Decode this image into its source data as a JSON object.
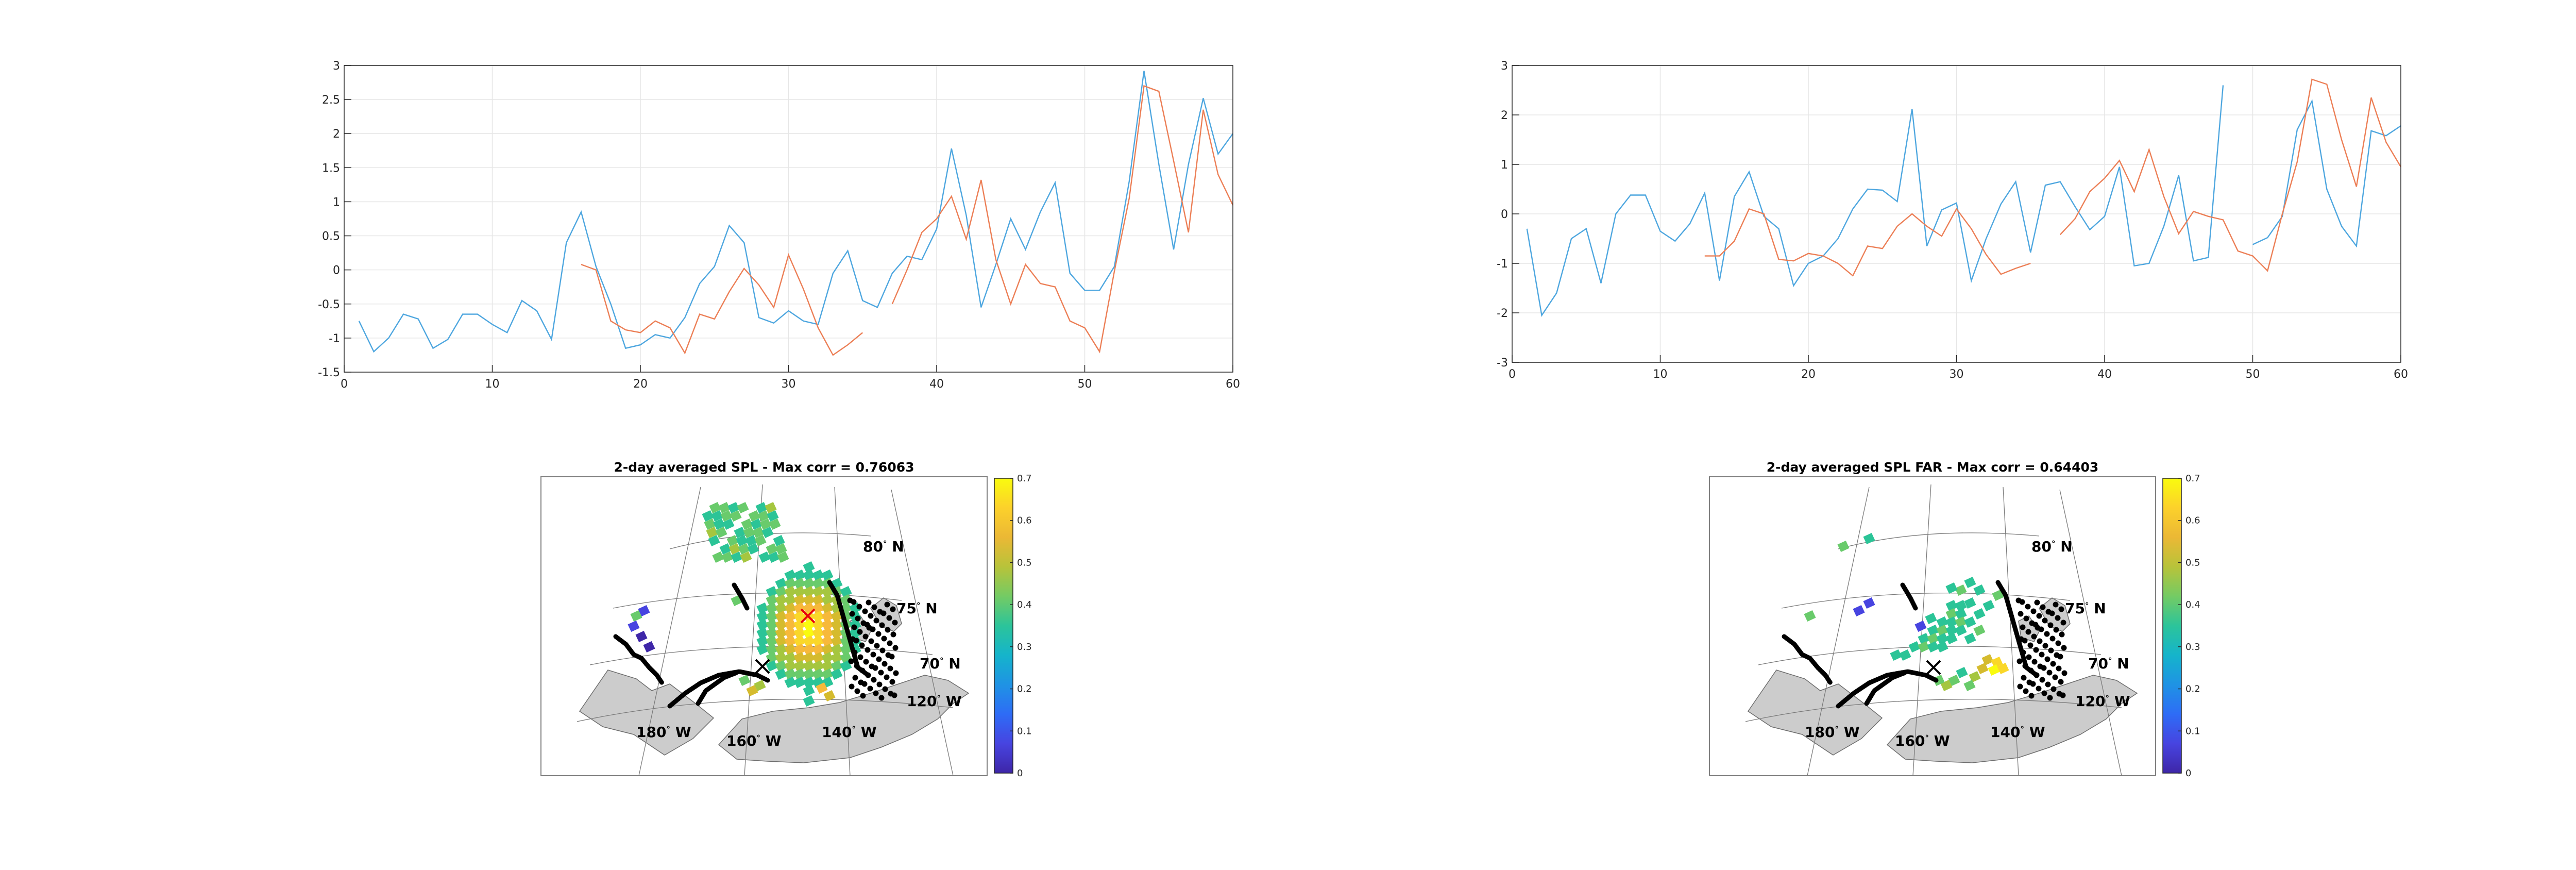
{
  "colors": {
    "series_blue": "#4da6df",
    "series_orange": "#ec7e55",
    "land": "#cccccc",
    "coast": "#000000",
    "grid": "#e6e6e6",
    "marker_red": "#e8000b",
    "parula": [
      "#3e26a8",
      "#4744e0",
      "#3a66fa",
      "#2586f1",
      "#1ea4db",
      "#14b8c3",
      "#2bc497",
      "#69cb6b",
      "#a5c63f",
      "#d5bb2e",
      "#f7b93a",
      "#fad729",
      "#f9fb0e"
    ]
  },
  "chart_data": [
    {
      "type": "line",
      "xlim": [
        0,
        60
      ],
      "ylim": [
        -1.5,
        3
      ],
      "x_ticks": [
        "0",
        "10",
        "20",
        "30",
        "40",
        "50",
        "60"
      ],
      "y_ticks": [
        "-1.5",
        "-1",
        "-0.5",
        "0",
        "0.5",
        "1",
        "1.5",
        "2",
        "2.5",
        "3"
      ],
      "grid": true,
      "series": [
        {
          "color": "series_blue",
          "x": [
            1,
            2,
            3,
            4,
            5,
            6,
            7,
            8,
            9,
            10,
            11,
            12,
            13,
            14,
            15,
            16,
            17,
            18,
            19,
            20,
            21,
            22,
            23,
            24,
            25,
            26,
            27,
            28,
            29,
            30,
            31,
            32,
            33,
            34,
            35,
            36,
            37,
            38,
            39,
            40,
            41,
            42,
            43,
            44,
            45,
            46,
            47,
            48,
            49,
            50,
            51,
            52,
            53,
            54,
            55,
            56,
            57,
            58,
            59,
            60
          ],
          "y": [
            -0.75,
            -1.2,
            -1.0,
            -0.65,
            -0.72,
            -1.15,
            -1.02,
            -0.65,
            -0.65,
            -0.8,
            -0.92,
            -0.45,
            -0.6,
            -1.02,
            0.4,
            0.85,
            0.05,
            -0.5,
            -1.15,
            -1.1,
            -0.95,
            -1.0,
            -0.7,
            -0.2,
            0.05,
            0.65,
            0.4,
            -0.7,
            -0.78,
            -0.6,
            -0.75,
            -0.8,
            -0.05,
            0.28,
            -0.45,
            -0.55,
            -0.05,
            0.2,
            0.15,
            0.6,
            1.78,
            0.8,
            -0.55,
            0.08,
            0.75,
            0.3,
            0.85,
            1.28,
            -0.05,
            -0.3,
            -0.3,
            0.05,
            1.3,
            2.92,
            1.55,
            0.3,
            1.55,
            2.52,
            1.7,
            2.0
          ]
        },
        {
          "color": "series_orange",
          "x": [
            16,
            17,
            18,
            19,
            20,
            21,
            22,
            23,
            24,
            25,
            26,
            27,
            28,
            29,
            30,
            31,
            32,
            33,
            34,
            35,
            null,
            37,
            38,
            39,
            40,
            41,
            42,
            43,
            44,
            45,
            46,
            47,
            48,
            49,
            50,
            51,
            52,
            53,
            54,
            55,
            56,
            57,
            58,
            59,
            60
          ],
          "y": [
            0.08,
            0.0,
            -0.75,
            -0.88,
            -0.92,
            -0.75,
            -0.85,
            -1.22,
            -0.65,
            -0.72,
            -0.32,
            0.02,
            -0.22,
            -0.55,
            0.22,
            -0.28,
            -0.85,
            -1.25,
            -1.1,
            -0.92,
            null,
            -0.5,
            0.0,
            0.55,
            0.75,
            1.08,
            0.45,
            1.32,
            0.15,
            -0.5,
            0.08,
            -0.2,
            -0.25,
            -0.75,
            -0.85,
            -1.2,
            -0.02,
            1.05,
            2.7,
            2.62,
            1.6,
            0.55,
            2.35,
            1.4,
            0.95
          ]
        }
      ]
    },
    {
      "type": "line",
      "xlim": [
        0,
        60
      ],
      "ylim": [
        -3,
        3
      ],
      "x_ticks": [
        "0",
        "10",
        "20",
        "30",
        "40",
        "50",
        "60"
      ],
      "y_ticks": [
        "-3",
        "-2",
        "-1",
        "0",
        "1",
        "2",
        "3"
      ],
      "grid": true,
      "series": [
        {
          "color": "series_blue",
          "x": [
            1,
            2,
            3,
            4,
            5,
            6,
            7,
            8,
            9,
            10,
            11,
            12,
            13,
            14,
            15,
            16,
            17,
            18,
            19,
            20,
            21,
            22,
            23,
            24,
            25,
            26,
            27,
            28,
            29,
            30,
            31,
            32,
            33,
            34,
            35,
            36,
            37,
            38,
            39,
            40,
            41,
            42,
            43,
            44,
            45,
            46,
            47,
            48,
            null,
            50,
            51,
            52,
            53,
            54,
            55,
            56,
            57,
            58,
            59,
            60
          ],
          "y": [
            -0.3,
            -2.05,
            -1.6,
            -0.5,
            -0.3,
            -1.4,
            0.0,
            0.38,
            0.38,
            -0.35,
            -0.55,
            -0.2,
            0.42,
            -1.35,
            0.35,
            0.85,
            -0.05,
            -0.3,
            -1.45,
            -1.0,
            -0.85,
            -0.5,
            0.1,
            0.5,
            0.48,
            0.25,
            2.12,
            -0.65,
            0.08,
            0.22,
            -1.35,
            -0.5,
            0.2,
            0.65,
            -0.78,
            0.58,
            0.65,
            0.15,
            -0.32,
            -0.05,
            0.95,
            -1.05,
            -1.0,
            -0.25,
            0.78,
            -0.95,
            -0.88,
            2.6,
            null,
            -0.62,
            -0.48,
            -0.05,
            1.7,
            2.28,
            0.5,
            -0.25,
            -0.65,
            1.68,
            1.58,
            1.78
          ]
        },
        {
          "color": "series_orange",
          "x": [
            13,
            14,
            15,
            16,
            17,
            18,
            19,
            20,
            21,
            22,
            23,
            24,
            25,
            26,
            27,
            28,
            29,
            30,
            31,
            32,
            33,
            34,
            35,
            null,
            37,
            38,
            39,
            40,
            41,
            42,
            43,
            44,
            45,
            46,
            47,
            48,
            49,
            50,
            51,
            52,
            53,
            54,
            55,
            56,
            57,
            58,
            59,
            60
          ],
          "y": [
            -0.85,
            -0.85,
            -0.55,
            0.1,
            0.0,
            -0.92,
            -0.95,
            -0.8,
            -0.85,
            -1.0,
            -1.25,
            -0.65,
            -0.7,
            -0.25,
            0.0,
            -0.25,
            -0.45,
            0.1,
            -0.3,
            -0.82,
            -1.22,
            -1.1,
            -1.0,
            null,
            -0.42,
            -0.1,
            0.45,
            0.72,
            1.08,
            0.45,
            1.3,
            0.35,
            -0.4,
            0.05,
            -0.05,
            -0.12,
            -0.75,
            -0.85,
            -1.15,
            0.0,
            1.05,
            2.72,
            2.62,
            1.5,
            0.55,
            2.35,
            1.45,
            0.95
          ]
        }
      ]
    },
    {
      "type": "heatmap",
      "title": "2-day averaged SPL - Max corr = 0.76063",
      "colorbar_ticks": [
        "0",
        "0.1",
        "0.2",
        "0.3",
        "0.4",
        "0.5",
        "0.6",
        "0.7"
      ],
      "clim": [
        0,
        0.7
      ],
      "lat_labels": [
        "80",
        "75",
        "70"
      ],
      "lon_labels": [
        "180",
        "160",
        "140",
        "120"
      ],
      "lat_suffix": "N",
      "lon_suffix": "W",
      "max_corr": 0.76063
    },
    {
      "type": "heatmap",
      "title": "2-day averaged SPL FAR - Max corr = 0.64403",
      "colorbar_ticks": [
        "0",
        "0.1",
        "0.2",
        "0.3",
        "0.4",
        "0.5",
        "0.6",
        "0.7"
      ],
      "clim": [
        0,
        0.7
      ],
      "lat_labels": [
        "80",
        "75",
        "70"
      ],
      "lon_labels": [
        "180",
        "160",
        "140",
        "120"
      ],
      "lat_suffix": "N",
      "lon_suffix": "W",
      "max_corr": 0.64403
    }
  ]
}
